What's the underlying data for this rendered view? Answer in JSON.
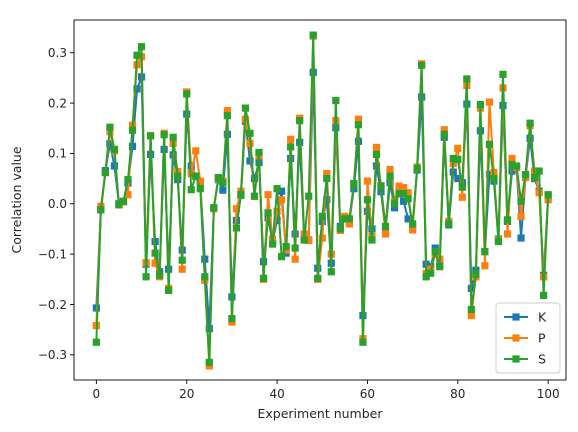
{
  "chart_data": {
    "type": "line",
    "title": "",
    "xlabel": "Experiment number",
    "ylabel": "Correlation value",
    "xlim": [
      -4.95,
      103.95
    ],
    "ylim": [
      -0.35,
      0.365
    ],
    "xticks": [
      0,
      20,
      40,
      60,
      80,
      100
    ],
    "yticks": [
      -0.3,
      -0.2,
      -0.1,
      0.0,
      0.1,
      0.2,
      0.3
    ],
    "xtick_labels": [
      "0",
      "20",
      "40",
      "60",
      "80",
      "100"
    ],
    "ytick_labels": [
      "−0.3",
      "−0.2",
      "−0.1",
      "0.0",
      "0.1",
      "0.2",
      "0.3"
    ],
    "grid": false,
    "legend_position": "lower-right",
    "marker": "square",
    "series": [
      {
        "name": "K",
        "color": "#1f77b4",
        "values": [
          -0.207,
          -0.012,
          0.066,
          0.119,
          0.075,
          0.0,
          0.004,
          0.041,
          0.114,
          0.228,
          0.252,
          -0.12,
          0.098,
          -0.075,
          -0.135,
          0.108,
          -0.13,
          0.097,
          0.048,
          -0.092,
          0.178,
          0.075,
          0.055,
          0.043,
          -0.11,
          -0.248,
          -0.008,
          0.048,
          0.027,
          0.138,
          -0.185,
          -0.033,
          0.017,
          0.164,
          0.085,
          0.05,
          0.082,
          -0.115,
          -0.028,
          -0.075,
          -0.033,
          0.025,
          -0.098,
          0.09,
          -0.06,
          0.122,
          -0.065,
          -0.072,
          0.261,
          -0.128,
          -0.035,
          0.008,
          -0.118,
          0.151,
          -0.045,
          -0.03,
          -0.035,
          0.03,
          0.124,
          -0.222,
          -0.015,
          -0.05,
          0.075,
          0.024,
          -0.055,
          0.042,
          -0.008,
          0.022,
          0.005,
          -0.03,
          -0.045,
          0.067,
          0.212,
          -0.12,
          -0.125,
          -0.088,
          -0.12,
          0.132,
          -0.042,
          0.063,
          0.05,
          0.042,
          0.198,
          -0.168,
          -0.132,
          0.145,
          -0.095,
          0.058,
          0.045,
          -0.07,
          0.195,
          -0.035,
          0.065,
          0.073,
          -0.068,
          0.053,
          0.13,
          0.05,
          0.025,
          -0.142,
          0.015
        ]
      },
      {
        "name": "P",
        "color": "#ff7f0e",
        "values": [
          -0.242,
          -0.005,
          0.062,
          0.143,
          0.105,
          -0.002,
          0.004,
          0.018,
          0.156,
          0.276,
          0.292,
          -0.117,
          0.135,
          -0.118,
          -0.145,
          0.14,
          -0.168,
          0.12,
          0.064,
          -0.13,
          0.222,
          0.06,
          0.105,
          0.045,
          -0.152,
          -0.322,
          -0.01,
          0.05,
          0.045,
          0.185,
          -0.235,
          -0.01,
          0.025,
          0.168,
          0.12,
          0.015,
          0.095,
          -0.15,
          0.018,
          -0.07,
          -0.015,
          0.008,
          -0.092,
          0.128,
          -0.11,
          0.17,
          -0.06,
          -0.073,
          0.333,
          -0.15,
          -0.068,
          0.06,
          -0.1,
          0.165,
          -0.053,
          -0.025,
          -0.04,
          0.04,
          0.168,
          -0.268,
          0.045,
          -0.065,
          0.112,
          0.036,
          -0.06,
          0.068,
          0.005,
          0.035,
          0.032,
          0.022,
          -0.052,
          0.073,
          0.278,
          -0.138,
          -0.13,
          -0.1,
          -0.11,
          0.147,
          -0.035,
          0.08,
          0.11,
          0.013,
          0.235,
          -0.222,
          -0.145,
          0.19,
          -0.123,
          0.202,
          0.062,
          -0.072,
          0.23,
          -0.06,
          0.09,
          0.072,
          -0.025,
          0.052,
          0.155,
          0.065,
          0.022,
          -0.145,
          0.008
        ]
      },
      {
        "name": "S",
        "color": "#2ca02c",
        "values": [
          -0.275,
          -0.012,
          0.062,
          0.152,
          0.108,
          -0.002,
          0.005,
          0.048,
          0.146,
          0.295,
          0.312,
          -0.145,
          0.135,
          -0.098,
          -0.142,
          0.137,
          -0.172,
          0.132,
          0.055,
          -0.112,
          0.218,
          0.028,
          0.055,
          0.03,
          -0.145,
          -0.315,
          -0.008,
          0.052,
          0.042,
          0.175,
          -0.228,
          -0.048,
          0.018,
          0.19,
          0.14,
          0.015,
          0.102,
          -0.148,
          -0.018,
          -0.08,
          0.03,
          -0.105,
          -0.085,
          0.113,
          -0.088,
          0.165,
          -0.072,
          0.015,
          0.335,
          -0.148,
          -0.025,
          0.05,
          -0.135,
          0.205,
          -0.05,
          -0.03,
          -0.03,
          0.04,
          0.157,
          -0.275,
          0.008,
          -0.072,
          0.098,
          0.035,
          -0.045,
          0.055,
          0.0,
          0.02,
          0.02,
          0.01,
          -0.04,
          0.07,
          0.275,
          -0.145,
          -0.138,
          -0.095,
          -0.125,
          0.138,
          -0.04,
          0.09,
          0.088,
          0.033,
          0.248,
          -0.21,
          -0.14,
          0.197,
          -0.095,
          0.118,
          0.05,
          -0.075,
          0.257,
          -0.032,
          0.078,
          0.075,
          0.005,
          0.058,
          0.16,
          0.052,
          0.065,
          -0.182,
          0.018
        ]
      }
    ]
  }
}
